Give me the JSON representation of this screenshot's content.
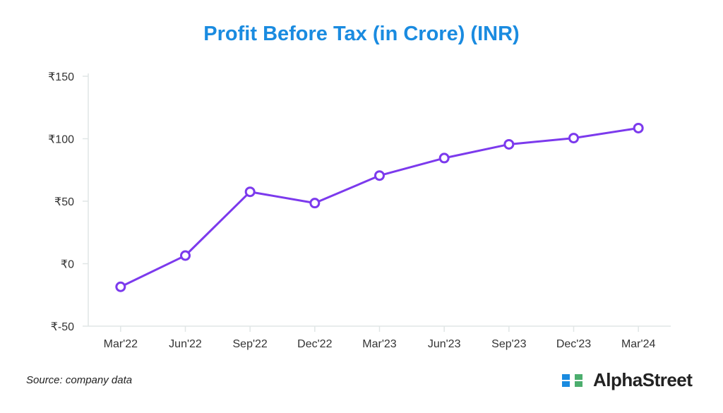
{
  "chart_data": {
    "type": "line",
    "title": "Profit Before Tax (in Crore) (INR)",
    "xlabel": "",
    "ylabel": "",
    "categories": [
      "Mar'22",
      "Jun'22",
      "Sep'22",
      "Dec'22",
      "Mar'23",
      "Jun'23",
      "Sep'23",
      "Dec'23",
      "Mar'24"
    ],
    "series": [
      {
        "name": "Profit Before Tax",
        "values": [
          -18.5,
          6.5,
          57.5,
          48.5,
          70.5,
          84.5,
          95.5,
          100.5,
          108.5
        ]
      }
    ],
    "ylim": [
      -50,
      150
    ],
    "yticks": [
      150,
      100,
      50,
      0,
      -50
    ],
    "ytick_labels": [
      "₹150",
      "₹100",
      "₹50",
      "₹0",
      "₹-50"
    ],
    "grid": false,
    "colors": {
      "line": "#7c3aed",
      "title": "#1a8be0"
    }
  },
  "source": "Source: company data",
  "logo": {
    "text": "AlphaStreet"
  }
}
